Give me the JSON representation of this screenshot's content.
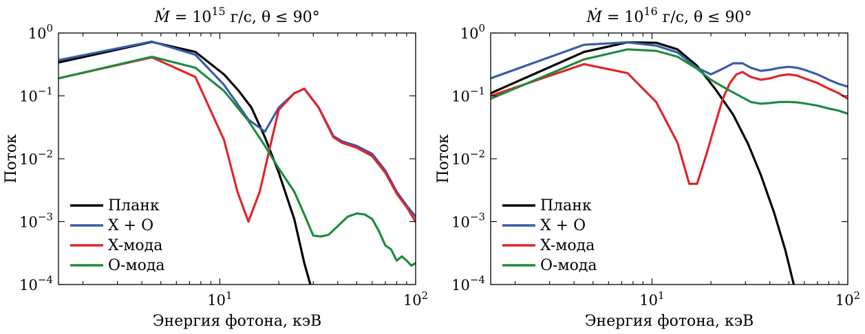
{
  "chart_data": [
    {
      "type": "line",
      "title": "Ṁ = 10^15 г/с, θ ≤ 90°",
      "title_parts": {
        "lhs": "Ṁ",
        "eq": " = 10",
        "exp": "15",
        "rest": " г/с, θ ≤ 90°"
      },
      "xlabel": "Энергия фотона, кэВ",
      "ylabel": "Поток",
      "xscale": "log",
      "yscale": "log",
      "xlim": [
        1.5,
        100
      ],
      "ylim": [
        0.0001,
        1
      ],
      "x_ticks": [
        {
          "base": "10",
          "exp": "1",
          "value": 10
        },
        {
          "base": "10",
          "exp": "2",
          "value": 100
        }
      ],
      "y_ticks": [
        {
          "base": "10",
          "exp": "0",
          "value": 1
        },
        {
          "base": "10",
          "exp": "−1",
          "value": 0.1
        },
        {
          "base": "10",
          "exp": "−2",
          "value": 0.01
        },
        {
          "base": "10",
          "exp": "−3",
          "value": 0.001
        },
        {
          "base": "10",
          "exp": "−4",
          "value": 0.0001
        }
      ],
      "legend_position": "lower-left",
      "series": [
        {
          "name": "Планк",
          "color": "#000000",
          "x": [
            1.5,
            4.5,
            7.5,
            10.5,
            12.5,
            14.5,
            17,
            20,
            24,
            27,
            29
          ],
          "y": [
            0.34,
            0.72,
            0.5,
            0.22,
            0.12,
            0.065,
            0.022,
            0.006,
            0.0011,
            0.00022,
            0.0001
          ]
        },
        {
          "name": "X + O",
          "color": "#3b5ba7",
          "x": [
            1.5,
            4.5,
            7.5,
            10.5,
            14,
            17,
            20,
            24,
            27,
            32,
            38,
            42,
            50,
            60,
            70,
            80,
            90,
            100
          ],
          "y": [
            0.37,
            0.73,
            0.45,
            0.15,
            0.042,
            0.027,
            0.065,
            0.11,
            0.13,
            0.065,
            0.023,
            0.019,
            0.016,
            0.012,
            0.0065,
            0.003,
            0.0018,
            0.0012
          ]
        },
        {
          "name": "X-мода",
          "color": "#e0252a",
          "x": [
            1.5,
            4.5,
            7.5,
            10.5,
            12.3,
            14,
            16,
            18,
            20,
            24,
            27,
            32,
            38,
            42,
            50,
            60,
            70,
            80,
            90,
            100
          ],
          "y": [
            0.19,
            0.41,
            0.2,
            0.02,
            0.003,
            0.001,
            0.003,
            0.015,
            0.06,
            0.11,
            0.13,
            0.065,
            0.022,
            0.018,
            0.015,
            0.011,
            0.006,
            0.0028,
            0.0017,
            0.001
          ]
        },
        {
          "name": "О-мода",
          "color": "#1d8c3f",
          "x": [
            1.5,
            4.5,
            7.5,
            10.5,
            14,
            17,
            20,
            24,
            27,
            30,
            33,
            36,
            40,
            45,
            50,
            55,
            60,
            65,
            70,
            75,
            80,
            85,
            90,
            95,
            100
          ],
          "y": [
            0.19,
            0.42,
            0.28,
            0.12,
            0.04,
            0.016,
            0.007,
            0.003,
            0.0013,
            0.0006,
            0.00058,
            0.00062,
            0.00085,
            0.0012,
            0.00135,
            0.0013,
            0.0011,
            0.0007,
            0.00042,
            0.00036,
            0.00024,
            0.00028,
            0.00024,
            0.0002,
            0.00022
          ]
        }
      ]
    },
    {
      "type": "line",
      "title": "Ṁ = 10^16 г/с, θ ≤ 90°",
      "title_parts": {
        "lhs": "Ṁ",
        "eq": " = 10",
        "exp": "16",
        "rest": " г/с, θ ≤ 90°"
      },
      "xlabel": "Энергия фотона, кэВ",
      "ylabel": "Поток",
      "xscale": "log",
      "yscale": "log",
      "xlim": [
        1.5,
        100
      ],
      "ylim": [
        0.0001,
        1
      ],
      "x_ticks": [
        {
          "base": "10",
          "exp": "1",
          "value": 10
        },
        {
          "base": "10",
          "exp": "2",
          "value": 100
        }
      ],
      "y_ticks": [
        {
          "base": "10",
          "exp": "0",
          "value": 1
        },
        {
          "base": "10",
          "exp": "−1",
          "value": 0.1
        },
        {
          "base": "10",
          "exp": "−2",
          "value": 0.01
        },
        {
          "base": "10",
          "exp": "−3",
          "value": 0.001
        },
        {
          "base": "10",
          "exp": "−4",
          "value": 0.0001
        }
      ],
      "legend_position": "lower-left",
      "series": [
        {
          "name": "Планк",
          "color": "#000000",
          "x": [
            1.5,
            4.5,
            7.5,
            10.5,
            13.5,
            17,
            21,
            26,
            31,
            36,
            42,
            48,
            53
          ],
          "y": [
            0.11,
            0.5,
            0.71,
            0.7,
            0.55,
            0.3,
            0.13,
            0.05,
            0.017,
            0.0055,
            0.0014,
            0.00035,
            0.0001
          ]
        },
        {
          "name": "X + O",
          "color": "#3b5ba7",
          "x": [
            1.5,
            4.5,
            7.5,
            10.5,
            13.5,
            17,
            20,
            23,
            26,
            29,
            32,
            36,
            40,
            45,
            50,
            55,
            60,
            70,
            80,
            90,
            100
          ],
          "y": [
            0.19,
            0.65,
            0.71,
            0.63,
            0.49,
            0.28,
            0.22,
            0.27,
            0.33,
            0.33,
            0.28,
            0.25,
            0.26,
            0.28,
            0.29,
            0.28,
            0.26,
            0.22,
            0.18,
            0.155,
            0.14
          ]
        },
        {
          "name": "X-мода",
          "color": "#e0252a",
          "x": [
            1.5,
            4.5,
            7.5,
            10.5,
            13.5,
            15.5,
            17,
            19,
            21,
            23,
            25,
            27,
            29,
            32,
            36,
            40,
            45,
            50,
            55,
            60,
            70,
            80,
            90,
            100
          ],
          "y": [
            0.1,
            0.32,
            0.23,
            0.08,
            0.018,
            0.004,
            0.004,
            0.012,
            0.035,
            0.09,
            0.16,
            0.22,
            0.24,
            0.2,
            0.18,
            0.19,
            0.21,
            0.22,
            0.21,
            0.19,
            0.16,
            0.13,
            0.11,
            0.09
          ]
        },
        {
          "name": "О-мода",
          "color": "#1d8c3f",
          "x": [
            1.5,
            4.5,
            7.5,
            10.5,
            13.5,
            17,
            20,
            24,
            28,
            32,
            36,
            40,
            45,
            50,
            55,
            60,
            70,
            80,
            90,
            100
          ],
          "y": [
            0.09,
            0.38,
            0.55,
            0.52,
            0.42,
            0.27,
            0.18,
            0.13,
            0.1,
            0.08,
            0.075,
            0.077,
            0.08,
            0.08,
            0.079,
            0.076,
            0.07,
            0.063,
            0.058,
            0.052
          ]
        }
      ]
    }
  ]
}
